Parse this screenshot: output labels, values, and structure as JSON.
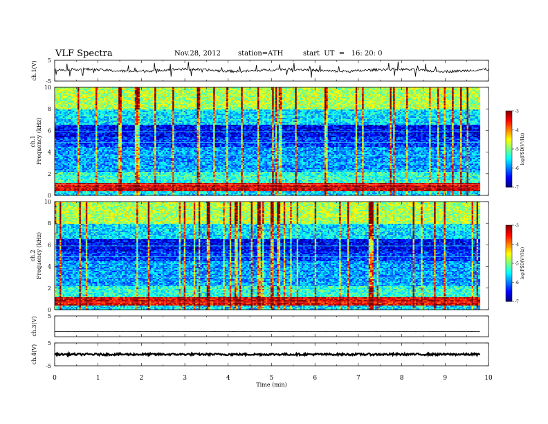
{
  "header": {
    "title": "VLF  Spectra",
    "date": "Nov.28, 2012",
    "station": "station=ATH",
    "start": "start  UT  =   16: 20: 0"
  },
  "chart_data": [
    {
      "type": "line",
      "ylabel": "ch.1(V)",
      "ylim": [
        -5,
        5
      ],
      "yticks": [
        "5",
        "-5"
      ],
      "baseline": 0.2,
      "noise": "spiky",
      "xlim": [
        0,
        10
      ]
    },
    {
      "type": "heatmap",
      "ylabel": "ch.1\nFrequency (kHz)",
      "ylabel_lines": [
        "ch.1",
        "Frequency  (kHz)"
      ],
      "ylim": [
        0,
        10
      ],
      "yticks": [
        "0",
        "2",
        "4",
        "6",
        "8",
        "10"
      ],
      "xlim": [
        0,
        9.8
      ],
      "colorbar": {
        "label": "log(PSD(V²/Hz)",
        "range": [
          -7,
          -3
        ],
        "ticks": [
          "-3",
          "-4",
          "-5",
          "-6",
          "-7"
        ],
        "colormap": "jet"
      }
    },
    {
      "type": "heatmap",
      "ylabel": "ch.2\nFrequency (kHz)",
      "ylabel_lines": [
        "ch.2",
        "Frequency  (kHz)"
      ],
      "ylim": [
        0,
        10
      ],
      "yticks": [
        "0",
        "2",
        "4",
        "6",
        "8",
        "10"
      ],
      "xlim": [
        0,
        9.8
      ],
      "colorbar": {
        "label": "log(PSD(V²/Hz)",
        "range": [
          -7,
          -3
        ],
        "ticks": [
          "-3",
          "-4",
          "-5",
          "-6",
          "-7"
        ],
        "colormap": "jet"
      }
    },
    {
      "type": "line",
      "ylabel": "ch.3(V)",
      "ylim": [
        -5,
        5
      ],
      "yticks": [
        "5"
      ],
      "baseline": -2.5,
      "noise": "flat",
      "xlim": [
        0,
        9.8
      ]
    },
    {
      "type": "line",
      "ylabel": "ch.4(V)",
      "ylim": [
        -5,
        5
      ],
      "yticks": [
        "5",
        "-5"
      ],
      "baseline": 0,
      "noise": "thick",
      "xlim": [
        0,
        9.8
      ]
    }
  ],
  "x_axis": {
    "label": "Time  (min)",
    "ticks": [
      "0",
      "1",
      "2",
      "3",
      "4",
      "5",
      "6",
      "7",
      "8",
      "9",
      "10"
    ],
    "range": [
      0,
      10
    ]
  }
}
